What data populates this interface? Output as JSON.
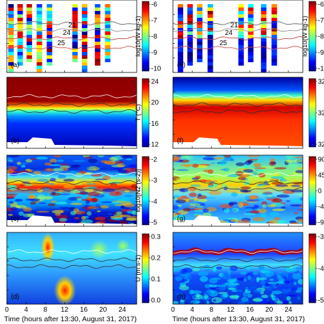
{
  "figure": {
    "xaxis_label": "Time (hours after 13:30, August 31, 2017)",
    "xticks": [
      "0",
      "4",
      "8",
      "12",
      "16",
      "20",
      "24"
    ]
  },
  "chart_data": [
    {
      "id": "a",
      "type": "heatmap",
      "panel_label": "(a)",
      "variable": "epsilon",
      "colorbar_label": "log10(W kg-1)",
      "colorbar_ticks": [
        "-6",
        "-7",
        "-8",
        "-9",
        "-10"
      ],
      "clim": [
        -10,
        -6
      ],
      "colormap": "jet",
      "contour_labels": [
        "21",
        "24",
        "25"
      ],
      "profile_times_h": [
        0.3,
        2.2,
        4.1,
        6.2,
        8.3,
        13.6,
        15.6,
        18.3,
        20.4
      ]
    },
    {
      "id": "b",
      "type": "heatmap",
      "panel_label": "(b)",
      "variable": "temperature",
      "colorbar_label": "T (°C)",
      "colorbar_ticks": [
        "24",
        "20",
        "16",
        "12"
      ],
      "clim": [
        10,
        26
      ],
      "colormap": "jet"
    },
    {
      "id": "c",
      "type": "heatmap",
      "panel_label": "(c)",
      "variable": "buoyancy frequency",
      "colorbar_label": "log10[N2 (s-2)]",
      "colorbar_ticks": [
        "-2",
        "-3",
        "-4",
        "-5"
      ],
      "clim": [
        -5,
        -2
      ],
      "colormap": "jet"
    },
    {
      "id": "d",
      "type": "heatmap",
      "panel_label": "(d)",
      "variable": "velocity U",
      "colorbar_label": "U (m s-1)",
      "colorbar_ticks": [
        "0.3",
        "0.2",
        "0.1",
        "0.0"
      ],
      "clim": [
        0,
        0.33
      ],
      "colormap": "jet"
    },
    {
      "id": "e",
      "type": "heatmap",
      "panel_label": "(e)",
      "variable": "epsilon",
      "colorbar_label": "log10(W kg-1)",
      "colorbar_ticks": [
        "-6",
        "-7",
        "-8",
        "-9",
        "-10"
      ],
      "clim": [
        -10,
        -6
      ],
      "colormap": "jet",
      "contour_labels": [
        "21",
        "24",
        "25"
      ],
      "profile_times_h": [
        1.0,
        3.0,
        5.0,
        7.2,
        13.6,
        15.6,
        18.3,
        20.5
      ]
    },
    {
      "id": "f",
      "type": "heatmap",
      "panel_label": "(f)",
      "variable": "salinity",
      "colorbar_ticks": [
        "32.",
        "32.",
        "32."
      ],
      "colormap": "jet"
    },
    {
      "id": "g",
      "type": "heatmap",
      "panel_label": "(g)",
      "variable": "angle",
      "colorbar_ticks": [
        "90",
        "45",
        "0",
        "-45",
        "-90"
      ],
      "clim": [
        -90,
        90
      ],
      "colormap": "jet"
    },
    {
      "id": "h",
      "type": "heatmap",
      "panel_label": "(h)",
      "variable": "shear",
      "colorbar_ticks": [
        "-3",
        "-4",
        "-5"
      ],
      "clim": [
        -5,
        -2.5
      ],
      "colormap": "jet"
    }
  ]
}
